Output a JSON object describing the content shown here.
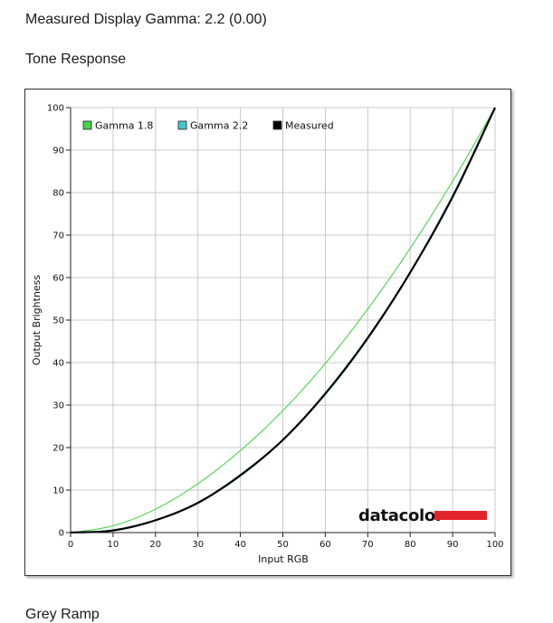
{
  "page": {
    "heading_gamma": "Measured Display Gamma: 2.2 (0.00)",
    "heading_tone": "Tone Response",
    "heading_next": "Grey Ramp"
  },
  "chart_data": {
    "type": "line",
    "title": "",
    "xlabel": "Input RGB",
    "ylabel": "Output Brightness",
    "xlim": [
      0,
      100
    ],
    "ylim": [
      0,
      100
    ],
    "x_ticks": [
      0,
      10,
      20,
      30,
      40,
      50,
      60,
      70,
      80,
      90,
      100
    ],
    "y_ticks": [
      0,
      10,
      20,
      30,
      40,
      50,
      60,
      70,
      80,
      90,
      100
    ],
    "grid": true,
    "legend_position": "top",
    "x": [
      0,
      10,
      20,
      30,
      40,
      50,
      60,
      70,
      80,
      90,
      100
    ],
    "series": [
      {
        "name": "Gamma 1.8",
        "color": "#4cd34c",
        "values": [
          0,
          1.6,
          5.5,
          11.5,
          19.3,
          28.7,
          39.8,
          52.6,
          66.9,
          82.7,
          100
        ]
      },
      {
        "name": "Gamma 2.2",
        "color": "#44c6cc",
        "values": [
          0,
          0.6,
          2.9,
          7.1,
          13.3,
          21.8,
          32.5,
          45.6,
          61.2,
          79.3,
          100
        ]
      },
      {
        "name": "Measured",
        "color": "#000000",
        "values": [
          0,
          0.5,
          2.9,
          7.0,
          13.5,
          21.8,
          32.7,
          45.8,
          61.2,
          79.0,
          100
        ]
      }
    ],
    "brand": "datacolor",
    "brand_color": "#e2232a"
  }
}
